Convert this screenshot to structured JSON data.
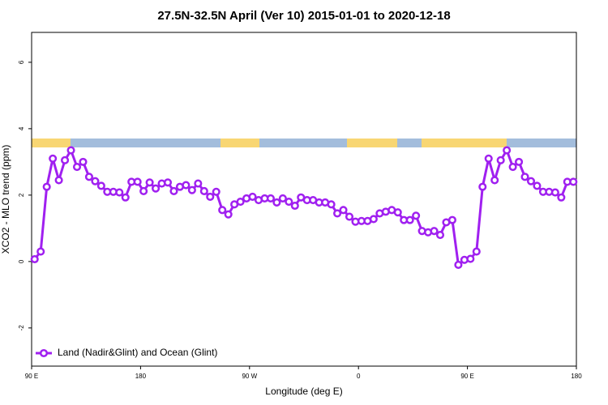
{
  "chart_data": {
    "type": "line",
    "title": "27.5N-32.5N April (Ver 10)   2015-01-01 to 2020-12-18",
    "xlabel": "Longitude (deg E)",
    "ylabel": "XCO2 - MLO trend (ppm)",
    "xlim": [
      90,
      540
    ],
    "xticks": [
      {
        "value": 90,
        "label": "90 E"
      },
      {
        "value": 180,
        "label": "180"
      },
      {
        "value": 270,
        "label": "90 W"
      },
      {
        "value": 360,
        "label": "0"
      },
      {
        "value": 450,
        "label": "90 E"
      },
      {
        "value": 540,
        "label": "180"
      }
    ],
    "ylim": [
      -3.15,
      6.9
    ],
    "yticks": [
      -2,
      0,
      2,
      4,
      6
    ],
    "legend": "bottom-left",
    "x": [
      92.5,
      97.5,
      102.5,
      107.5,
      112.5,
      117.5,
      122.5,
      127.5,
      132.5,
      137.5,
      142.5,
      147.5,
      152.5,
      157.5,
      162.5,
      167.5,
      172.5,
      177.5,
      182.5,
      187.5,
      192.5,
      197.5,
      202.5,
      207.5,
      212.5,
      217.5,
      222.5,
      227.5,
      232.5,
      237.5,
      242.5,
      247.5,
      252.5,
      257.5,
      262.5,
      267.5,
      272.5,
      277.5,
      282.5,
      287.5,
      292.5,
      297.5,
      302.5,
      307.5,
      312.5,
      317.5,
      322.5,
      327.5,
      332.5,
      337.5,
      342.5,
      347.5,
      352.5,
      357.5,
      362.5,
      367.5,
      372.5,
      377.5,
      382.5,
      387.5,
      392.5,
      397.5,
      402.5,
      407.5,
      412.5,
      417.5,
      422.5,
      427.5,
      432.5,
      437.5,
      442.5,
      447.5,
      452.5,
      457.5,
      462.5,
      467.5,
      472.5,
      477.5,
      482.5,
      487.5,
      492.5,
      497.5,
      502.5,
      507.5,
      512.5,
      517.5,
      522.5,
      527.5,
      532.5,
      537.5
    ],
    "series": [
      {
        "name": "Land (Nadir&Glint) and Ocean (Glint)",
        "color": "#a020f0",
        "values": [
          0.07,
          0.3,
          2.25,
          3.1,
          2.45,
          3.05,
          3.35,
          2.85,
          3.0,
          2.55,
          2.42,
          2.28,
          2.1,
          2.1,
          2.08,
          1.93,
          2.4,
          2.4,
          2.12,
          2.38,
          2.2,
          2.35,
          2.38,
          2.12,
          2.25,
          2.3,
          2.15,
          2.35,
          2.12,
          1.95,
          2.1,
          1.55,
          1.42,
          1.72,
          1.8,
          1.9,
          1.95,
          1.85,
          1.9,
          1.9,
          1.78,
          1.9,
          1.8,
          1.68,
          1.93,
          1.85,
          1.85,
          1.78,
          1.78,
          1.72,
          1.45,
          1.55,
          1.35,
          1.2,
          1.22,
          1.22,
          1.28,
          1.45,
          1.5,
          1.55,
          1.48,
          1.25,
          1.25,
          1.38,
          0.92,
          0.88,
          0.92,
          0.8,
          1.18,
          1.25,
          -0.1,
          0.05,
          0.08,
          0.3,
          2.25,
          3.1,
          2.45,
          3.05,
          3.35,
          2.85,
          3.0,
          2.55,
          2.42,
          2.28,
          2.1,
          2.1,
          2.08,
          1.93,
          2.4,
          2.4
        ]
      }
    ]
  }
}
